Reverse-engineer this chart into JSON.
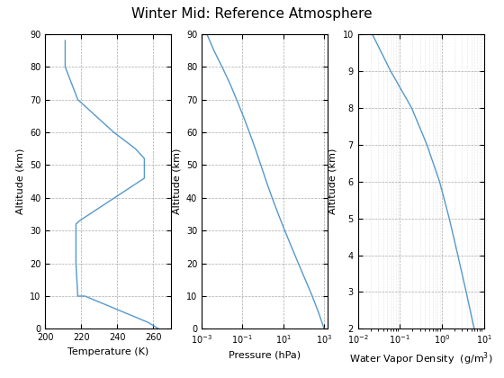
{
  "title": "Winter Mid: Reference Atmosphere",
  "line_color": "#5599CC",
  "temp": {
    "altitude": [
      0,
      2,
      10,
      10,
      20,
      32,
      33,
      46,
      52,
      55,
      60,
      70,
      80,
      88
    ],
    "temperature": [
      263,
      257,
      222,
      218,
      217,
      217,
      219,
      255,
      255,
      250,
      238,
      218,
      211,
      211
    ],
    "xlabel": "Temperature (K)",
    "ylabel": "Altitude (km)",
    "xlim": [
      200,
      270
    ],
    "ylim": [
      0,
      90
    ],
    "xticks": [
      200,
      220,
      240,
      260
    ],
    "yticks": [
      0,
      10,
      20,
      30,
      40,
      50,
      60,
      70,
      80,
      90
    ]
  },
  "pressure": {
    "altitude": [
      0,
      5,
      10,
      15,
      20,
      25,
      30,
      35,
      40,
      45,
      50,
      55,
      60,
      65,
      70,
      75,
      80,
      85,
      90
    ],
    "pressure": [
      1013.25,
      540.48,
      264.99,
      121.11,
      55.29,
      25.49,
      11.97,
      5.75,
      2.87,
      1.49,
      0.8,
      0.43,
      0.22,
      0.109,
      0.052,
      0.024,
      0.01,
      0.004,
      0.0018
    ],
    "xlabel": "Pressure (hPa)",
    "ylabel": "Altitude (km)",
    "xlim": [
      0.001,
      1500
    ],
    "ylim": [
      0,
      90
    ],
    "yticks": [
      0,
      10,
      20,
      30,
      40,
      50,
      60,
      70,
      80,
      90
    ]
  },
  "wvd": {
    "altitude": [
      2,
      3,
      4,
      5,
      6,
      7,
      8,
      9,
      10
    ],
    "wvd": [
      5.9,
      3.8,
      2.4,
      1.5,
      0.88,
      0.44,
      0.19,
      0.06,
      0.022
    ],
    "xlabel": "Water Vapor Density  (g/m$^{3}$)",
    "ylabel": "Altitude (km)",
    "xlim": [
      0.01,
      10
    ],
    "ylim": [
      2,
      10
    ],
    "yticks": [
      2,
      3,
      4,
      5,
      6,
      7,
      8,
      9,
      10
    ]
  },
  "grid_color": "#aaaaaa",
  "grid_linestyle": "--",
  "grid_linewidth": 0.5,
  "minor_grid_linestyle": ":",
  "minor_grid_color": "#cccccc",
  "minor_grid_linewidth": 0.4
}
